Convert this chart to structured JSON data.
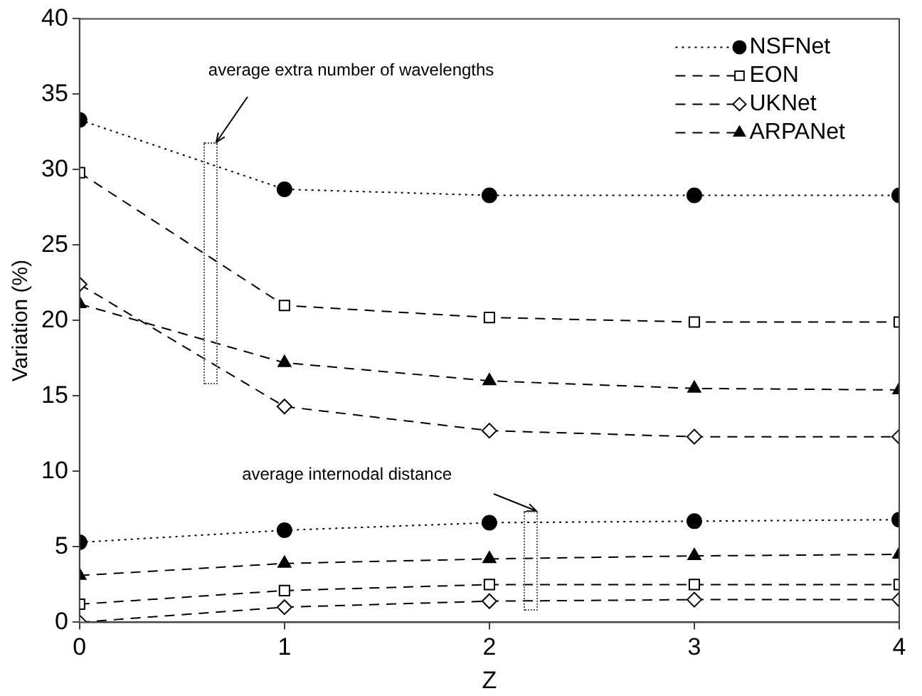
{
  "chart_data": {
    "type": "line",
    "xlabel": "Z",
    "ylabel": "Variation (%)",
    "x": [
      0,
      1,
      2,
      3,
      4
    ],
    "xlim": [
      0,
      4
    ],
    "xticks": [
      0,
      1,
      2,
      3,
      4
    ],
    "ylim": [
      0,
      40
    ],
    "yticks": [
      0,
      5,
      10,
      15,
      20,
      25,
      30,
      35,
      40
    ],
    "grid": false,
    "legend": "top right",
    "series": [
      {
        "name": "NSFNet",
        "color": "#000000",
        "marker": "circle",
        "line_style": "dotted",
        "values": [
          33.3,
          28.7,
          28.3,
          28.3,
          28.3
        ]
      },
      {
        "name": "EON",
        "color": "#000000",
        "marker": "square",
        "line_style": "dashed",
        "values": [
          29.8,
          21.0,
          20.2,
          19.9,
          19.9
        ]
      },
      {
        "name": "UKNet",
        "color": "#000000",
        "marker": "diamond",
        "line_style": "dashed",
        "values": [
          22.4,
          14.3,
          12.7,
          12.3,
          12.3
        ]
      },
      {
        "name": "ARPANet",
        "color": "#000000",
        "marker": "triangle",
        "line_style": "dashed",
        "values": [
          21.1,
          17.2,
          16.0,
          15.5,
          15.4
        ]
      },
      {
        "color": "#000000",
        "marker": "circle",
        "line_style": "dotted",
        "values": [
          5.3,
          6.1,
          6.6,
          6.7,
          6.8
        ]
      },
      {
        "color": "#000000",
        "marker": "square",
        "line_style": "dashed",
        "values": [
          1.2,
          2.1,
          2.5,
          2.5,
          2.5
        ]
      },
      {
        "color": "#000000",
        "marker": "diamond",
        "line_style": "dashed",
        "values": [
          0.0,
          1.0,
          1.4,
          1.5,
          1.5
        ]
      },
      {
        "color": "#000000",
        "marker": "triangle",
        "line_style": "dashed",
        "values": [
          3.1,
          3.9,
          4.2,
          4.4,
          4.5
        ]
      }
    ],
    "annotations": [
      "average extra number of wavelengths",
      "average internodal distance"
    ]
  }
}
